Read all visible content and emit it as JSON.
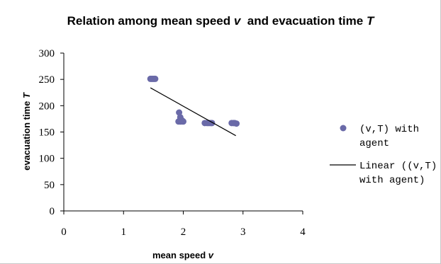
{
  "chart_data": {
    "type": "scatter",
    "title": {
      "main": "Relation among mean speed ",
      "v": "v",
      "mid": "  and evacuation time ",
      "T": "T"
    },
    "xlabel": {
      "main": "mean speed ",
      "v": "v"
    },
    "ylabel": {
      "main": "evacuation time ",
      "T": "T"
    },
    "xlim": [
      0,
      4
    ],
    "ylim": [
      0,
      300
    ],
    "x_ticks": [
      "0",
      "1",
      "2",
      "3",
      "4"
    ],
    "y_ticks": [
      "0",
      "50",
      "100",
      "150",
      "200",
      "250",
      "300"
    ],
    "grid": false,
    "legend_position": "right",
    "series": [
      {
        "name": "(v,T) with agent",
        "kind": "scatter",
        "color": "#6a6aa8",
        "points": [
          [
            1.45,
            251
          ],
          [
            1.47,
            251
          ],
          [
            1.49,
            251
          ],
          [
            1.51,
            251
          ],
          [
            1.53,
            251
          ],
          [
            1.93,
            187
          ],
          [
            1.95,
            178
          ],
          [
            1.92,
            170
          ],
          [
            1.94,
            170
          ],
          [
            1.96,
            170
          ],
          [
            1.98,
            172
          ],
          [
            1.99,
            170
          ],
          [
            2.0,
            170
          ],
          [
            2.36,
            167
          ],
          [
            2.4,
            167
          ],
          [
            2.43,
            167
          ],
          [
            2.46,
            167
          ],
          [
            2.48,
            167
          ],
          [
            2.81,
            167
          ],
          [
            2.84,
            167
          ],
          [
            2.86,
            167
          ],
          [
            2.89,
            166
          ]
        ]
      },
      {
        "name": "Linear ((v,T) with agent)",
        "kind": "line",
        "color": "#000000",
        "x": [
          1.45,
          2.88
        ],
        "y": [
          234,
          143
        ]
      }
    ],
    "legend": [
      {
        "kind": "marker",
        "lines": [
          "(v,T) with",
          "agent"
        ]
      },
      {
        "kind": "line",
        "lines": [
          "Linear ((v,T)",
          "with agent)"
        ]
      }
    ]
  }
}
